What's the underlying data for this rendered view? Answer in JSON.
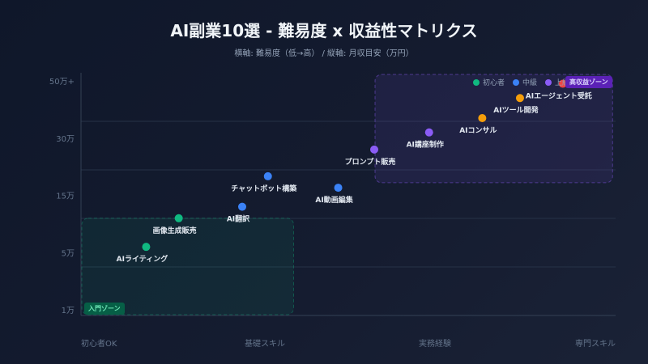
{
  "chart_data": {
    "type": "scatter",
    "title": "AI副業10選 - 難易度 x 収益性マトリクス",
    "subtitle": "横軸: 難易度（低→高） / 縦軸: 月収目安（万円）",
    "x_tick_labels": [
      "初心者OK",
      "基礎スキル",
      "実務経験",
      "専門スキル"
    ],
    "xlim": [
      0,
      3.1
    ],
    "y_tick_labels": [
      "1万",
      "5万",
      "15万",
      "30万",
      "50万+"
    ],
    "y_tick_values": [
      1,
      5,
      15,
      30,
      50
    ],
    "grid": true,
    "legend": {
      "placement": "top-right",
      "entries": [
        {
          "label": "初心者",
          "color": "#10b981"
        },
        {
          "label": "中級",
          "color": "#3b82f6"
        },
        {
          "label": "上級",
          "color": "#8b5cf6"
        },
        {
          "label": "",
          "color": "#f59e0b"
        }
      ]
    },
    "zones": [
      {
        "label": "入門ゾーン",
        "color": "#10b981",
        "x": [
          0,
          1.24
        ],
        "y": [
          1,
          11
        ]
      },
      {
        "label": "高収益ゾーン",
        "color": "#8b5cf6",
        "x": [
          1.71,
          3.1
        ],
        "y": [
          20,
          50
        ]
      }
    ],
    "points": [
      {
        "label": "AIライティング",
        "x": 0.38,
        "y": 6,
        "color": "#10b981"
      },
      {
        "label": "画像生成販売",
        "x": 0.57,
        "y": 11,
        "color": "#10b981"
      },
      {
        "label": "AI翻訳",
        "x": 0.94,
        "y": 13,
        "color": "#3b82f6"
      },
      {
        "label": "チャットボット構築",
        "x": 1.09,
        "y": 20,
        "color": "#3b82f6"
      },
      {
        "label": "AI動画編集",
        "x": 1.5,
        "y": 17,
        "color": "#3b82f6"
      },
      {
        "label": "プロンプト販売",
        "x": 1.71,
        "y": 27,
        "color": "#8b5cf6"
      },
      {
        "label": "AI講座制作",
        "x": 2.03,
        "y": 32,
        "color": "#8b5cf6"
      },
      {
        "label": "AIコンサル",
        "x": 2.34,
        "y": 37,
        "color": "#f59e0b"
      },
      {
        "label": "AIツール開発",
        "x": 2.56,
        "y": 44,
        "color": "#f59e0b"
      },
      {
        "label": "AIエージェント受託",
        "x": 2.81,
        "y": 49,
        "color": "#ef4444"
      }
    ]
  }
}
